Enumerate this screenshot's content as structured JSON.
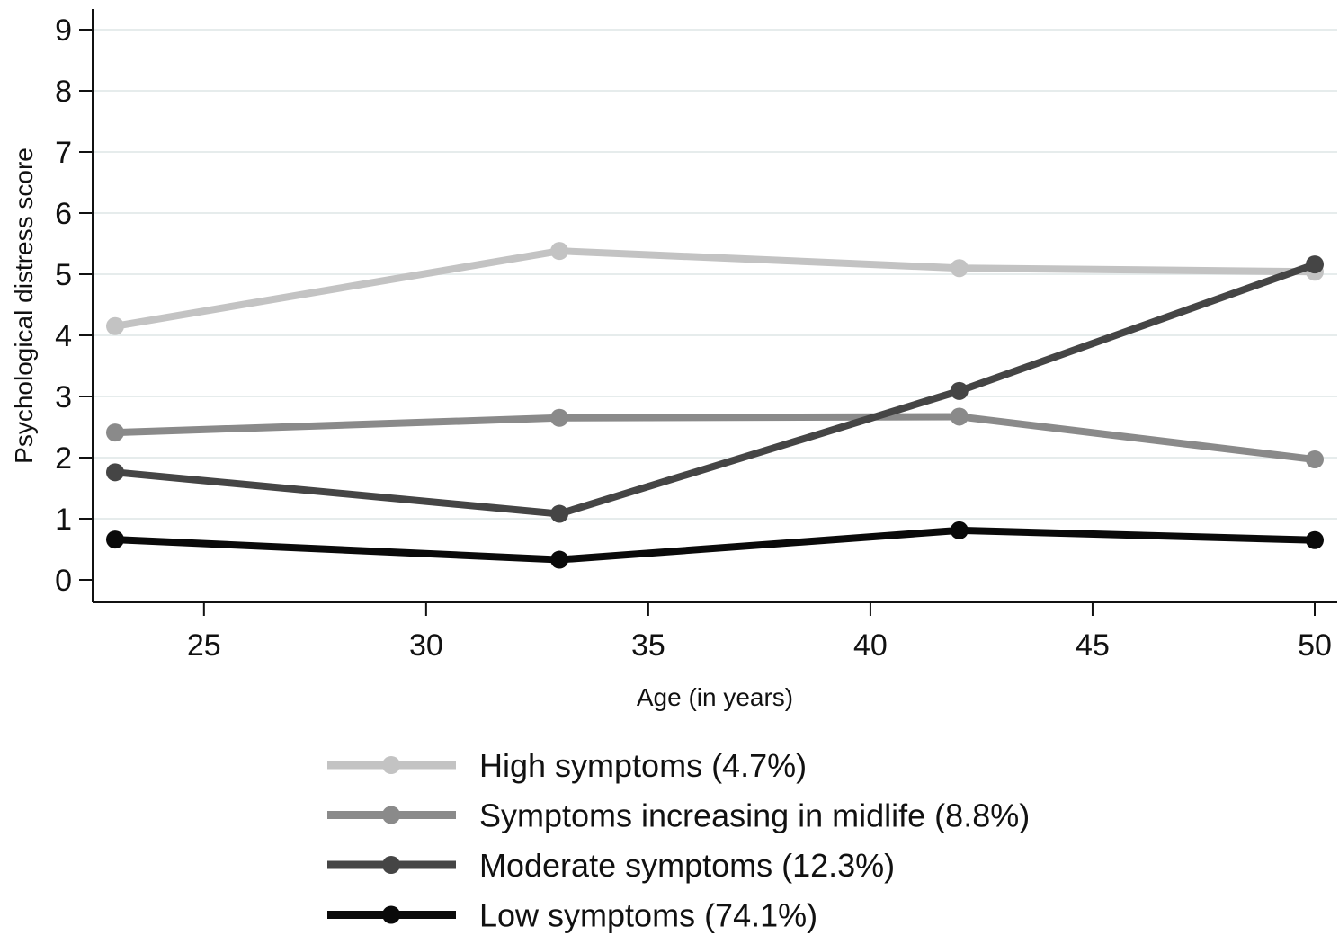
{
  "chart_data": {
    "type": "line",
    "title": "",
    "xlabel": "Age (in years)",
    "ylabel": "Psychological distress score",
    "xlim": [
      23,
      50
    ],
    "ylim": [
      0,
      9
    ],
    "x_ticks": [
      "25",
      "30",
      "35",
      "40",
      "45",
      "50"
    ],
    "y_ticks": [
      "0",
      "1",
      "2",
      "3",
      "4",
      "5",
      "6",
      "7",
      "8",
      "9"
    ],
    "grid": true,
    "legend_position": "bottom",
    "x": [
      23,
      33,
      42,
      50
    ],
    "series": [
      {
        "name": "High symptoms (4.7%)",
        "color": "#c3c3c3",
        "values": [
          4.15,
          5.38,
          5.1,
          5.04
        ]
      },
      {
        "name": "Symptoms increasing in midlife (8.8%)",
        "color": "#8a8a8a",
        "values": [
          2.41,
          2.65,
          2.67,
          1.97
        ]
      },
      {
        "name": "Moderate symptoms (12.3%)",
        "color": "#454545",
        "values": [
          1.76,
          1.08,
          3.09,
          5.16
        ]
      },
      {
        "name": "Low symptoms (74.1%)",
        "color": "#0a0a0a",
        "values": [
          0.66,
          0.33,
          0.81,
          0.65
        ]
      }
    ]
  }
}
